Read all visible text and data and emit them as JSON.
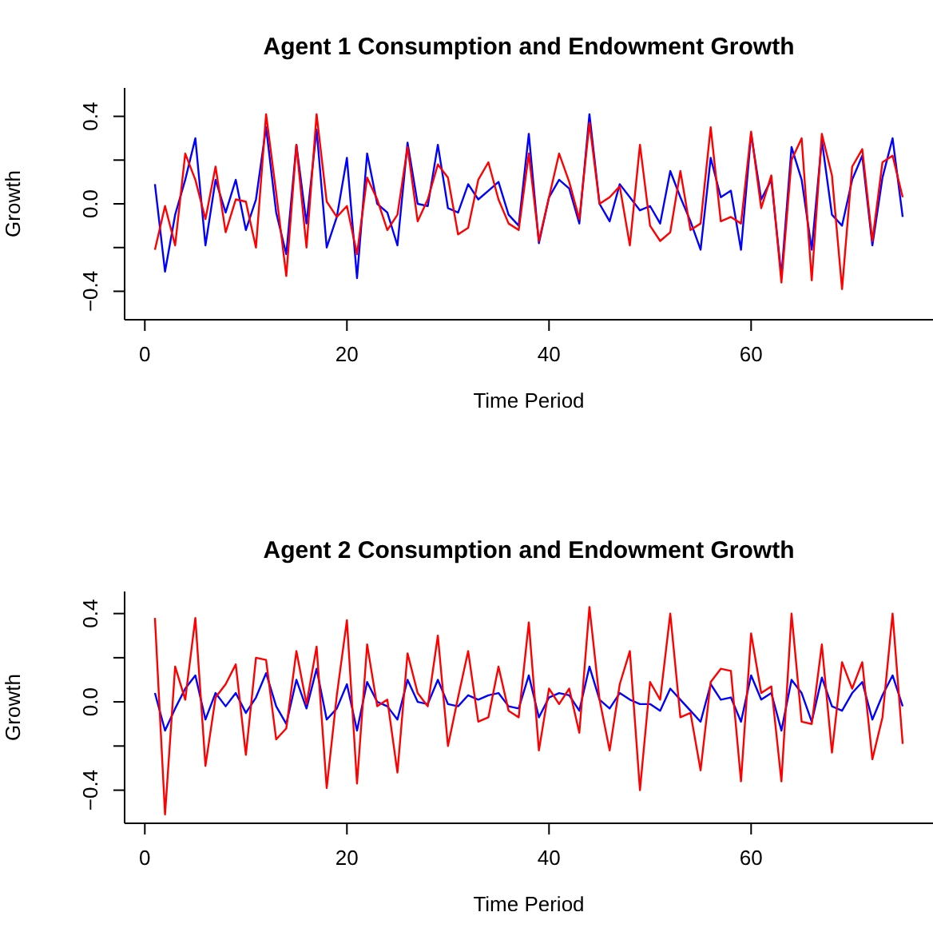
{
  "chart_data": [
    {
      "type": "line",
      "title": "Agent 1 Consumption and Endowment Growth",
      "xlabel": "Time Period",
      "ylabel": "Growth",
      "x": [
        1,
        2,
        3,
        4,
        5,
        6,
        7,
        8,
        9,
        10,
        11,
        12,
        13,
        14,
        15,
        16,
        17,
        18,
        19,
        20,
        21,
        22,
        23,
        24,
        25,
        26,
        27,
        28,
        29,
        30,
        31,
        32,
        33,
        34,
        35,
        36,
        37,
        38,
        39,
        40,
        41,
        42,
        43,
        44,
        45,
        46,
        47,
        48,
        49,
        50,
        51,
        52,
        53,
        54,
        55,
        56,
        57,
        58,
        59,
        60,
        61,
        62,
        63,
        64,
        65,
        66,
        67,
        68,
        69,
        70,
        71,
        72,
        73,
        74,
        75
      ],
      "series": [
        {
          "color": "#0000ff",
          "values": [
            0.09,
            -0.31,
            -0.05,
            0.11,
            0.3,
            -0.19,
            0.11,
            -0.04,
            0.11,
            -0.12,
            0.02,
            0.35,
            -0.04,
            -0.23,
            0.27,
            -0.09,
            0.34,
            -0.2,
            -0.06,
            0.21,
            -0.34,
            0.23,
            0,
            -0.04,
            -0.19,
            0.28,
            0,
            -0.01,
            0.27,
            -0.02,
            -0.04,
            0.09,
            0.02,
            0.06,
            0.1,
            -0.05,
            -0.1,
            0.32,
            -0.18,
            0.03,
            0.11,
            0.07,
            -0.09,
            0.41,
            0,
            -0.08,
            0.09,
            0.03,
            -0.03,
            -0.01,
            -0.09,
            0.15,
            0.03,
            -0.08,
            -0.21,
            0.21,
            0.03,
            0.06,
            -0.21,
            0.32,
            0.02,
            0.11,
            -0.33,
            0.26,
            0.11,
            -0.21,
            0.29,
            -0.05,
            -0.1,
            0.11,
            0.22,
            -0.19,
            0.12,
            0.3,
            -0.06
          ]
        },
        {
          "color": "#ff0000",
          "values": [
            -0.21,
            -0.01,
            -0.19,
            0.23,
            0.11,
            -0.07,
            0.17,
            -0.13,
            0.02,
            0.01,
            -0.2,
            0.41,
            0.05,
            -0.33,
            0.27,
            -0.2,
            0.41,
            0.01,
            -0.06,
            -0.01,
            -0.23,
            0.12,
            0.02,
            -0.12,
            -0.05,
            0.26,
            -0.08,
            0.02,
            0.18,
            0.12,
            -0.14,
            -0.11,
            0.11,
            0.19,
            0.02,
            -0.09,
            -0.12,
            0.23,
            -0.17,
            0.03,
            0.23,
            0.1,
            -0.07,
            0.37,
            0,
            0.03,
            0.08,
            -0.19,
            0.27,
            -0.1,
            -0.17,
            -0.13,
            0.15,
            -0.12,
            -0.09,
            0.35,
            -0.08,
            -0.06,
            -0.09,
            0.33,
            -0.02,
            0.13,
            -0.36,
            0.2,
            0.3,
            -0.35,
            0.32,
            0.13,
            -0.39,
            0.17,
            0.25,
            -0.17,
            0.19,
            0.22,
            0.03
          ]
        }
      ],
      "xlim": [
        -2,
        78
      ],
      "xticks": [
        0,
        20,
        40,
        60
      ],
      "ylim": [
        -0.53,
        0.53
      ],
      "yticks": [
        {
          "value": -0.4,
          "label": "−0.4"
        },
        {
          "value": -0.2,
          "label": null
        },
        {
          "value": 0,
          "label": "0.0"
        },
        {
          "value": 0.2,
          "label": null
        },
        0.4
      ],
      "grid": false,
      "legend": false,
      "marker": "none",
      "line_style": "solid"
    },
    {
      "type": "line",
      "title": "Agent 2 Consumption and Endowment Growth",
      "xlabel": "Time Period",
      "ylabel": "Growth",
      "x": [
        1,
        2,
        3,
        4,
        5,
        6,
        7,
        8,
        9,
        10,
        11,
        12,
        13,
        14,
        15,
        16,
        17,
        18,
        19,
        20,
        21,
        22,
        23,
        24,
        25,
        26,
        27,
        28,
        29,
        30,
        31,
        32,
        33,
        34,
        35,
        36,
        37,
        38,
        39,
        40,
        41,
        42,
        43,
        44,
        45,
        46,
        47,
        48,
        49,
        50,
        51,
        52,
        53,
        54,
        55,
        56,
        57,
        58,
        59,
        60,
        61,
        62,
        63,
        64,
        65,
        66,
        67,
        68,
        69,
        70,
        71,
        72,
        73,
        74,
        75
      ],
      "series": [
        {
          "color": "#0000ff",
          "values": [
            0.04,
            -0.13,
            -0.03,
            0.06,
            0.12,
            -0.08,
            0.04,
            -0.02,
            0.04,
            -0.05,
            0.02,
            0.13,
            -0.02,
            -0.1,
            0.1,
            -0.03,
            0.15,
            -0.08,
            -0.03,
            0.08,
            -0.13,
            0.09,
            0,
            -0.02,
            -0.08,
            0.1,
            0,
            -0.01,
            0.1,
            -0.01,
            -0.02,
            0.03,
            0.01,
            0.03,
            0.04,
            -0.02,
            -0.03,
            0.12,
            -0.07,
            0.02,
            0.04,
            0.03,
            -0.04,
            0.16,
            0.01,
            -0.03,
            0.04,
            0.01,
            -0.01,
            -0.01,
            -0.04,
            0.06,
            0.01,
            -0.04,
            -0.09,
            0.08,
            0.01,
            0.02,
            -0.09,
            0.12,
            0.01,
            0.04,
            -0.13,
            0.1,
            0.04,
            -0.09,
            0.11,
            -0.02,
            -0.04,
            0.04,
            0.09,
            -0.08,
            0.03,
            0.12,
            -0.02
          ]
        },
        {
          "color": "#ff0000",
          "values": [
            0.38,
            -0.51,
            0.16,
            0.01,
            0.38,
            -0.29,
            0.02,
            0.08,
            0.17,
            -0.24,
            0.2,
            0.19,
            -0.17,
            -0.12,
            0.23,
            -0.01,
            0.25,
            -0.39,
            0.03,
            0.37,
            -0.37,
            0.26,
            -0.02,
            0.01,
            -0.32,
            0.22,
            0.04,
            -0.02,
            0.3,
            -0.2,
            0.02,
            0.23,
            -0.09,
            -0.07,
            0.16,
            -0.04,
            -0.07,
            0.36,
            -0.22,
            0.06,
            -0.01,
            0.06,
            -0.14,
            0.43,
            0.01,
            -0.22,
            0.08,
            0.23,
            -0.4,
            0.09,
            0.01,
            0.4,
            -0.07,
            -0.05,
            -0.31,
            0.09,
            0.15,
            0.14,
            -0.36,
            0.31,
            0.04,
            0.07,
            -0.36,
            0.4,
            -0.09,
            -0.1,
            0.26,
            -0.23,
            0.18,
            0.06,
            0.18,
            -0.26,
            -0.07,
            0.4,
            -0.19
          ]
        }
      ],
      "xlim": [
        -2,
        78
      ],
      "xticks": [
        0,
        20,
        40,
        60
      ],
      "ylim": [
        -0.55,
        0.5
      ],
      "yticks": [
        {
          "value": -0.4,
          "label": "−0.4"
        },
        {
          "value": -0.2,
          "label": null
        },
        {
          "value": 0,
          "label": "0.0"
        },
        {
          "value": 0.2,
          "label": null
        },
        0.4
      ],
      "grid": false,
      "legend": false,
      "marker": "none",
      "line_style": "solid"
    }
  ]
}
